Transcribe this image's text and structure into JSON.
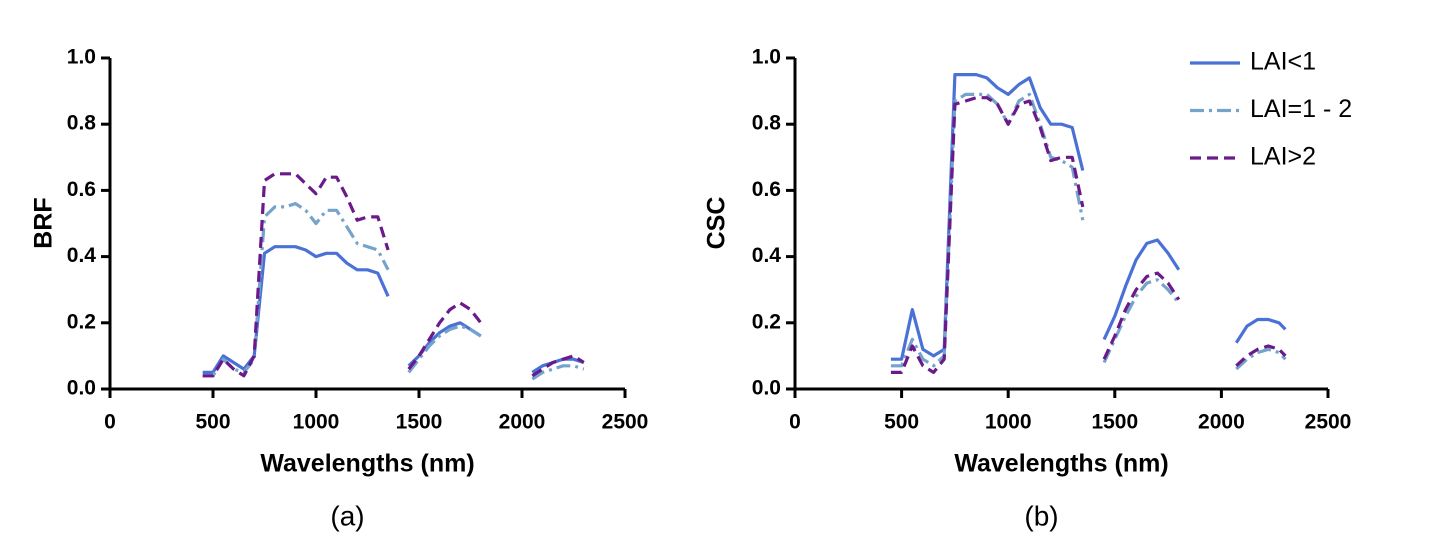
{
  "chart_data": [
    {
      "type": "line",
      "caption": "(a)",
      "xlabel": "Wavelengths (nm)",
      "ylabel": "BRF",
      "x": [
        450,
        500,
        550,
        600,
        650,
        700,
        750,
        800,
        850,
        900,
        950,
        1000,
        1050,
        1100,
        1150,
        1200,
        1250,
        1300,
        1350,
        1400,
        1450,
        1500,
        1550,
        1600,
        1650,
        1700,
        1750,
        1800,
        1900,
        2050,
        2100,
        2150,
        2200,
        2250,
        2300
      ],
      "series": [
        {
          "color": "#4a72d6",
          "dash": "solid",
          "values": [
            0.05,
            0.05,
            0.1,
            0.08,
            0.06,
            0.1,
            0.41,
            0.43,
            0.43,
            0.43,
            0.42,
            0.4,
            0.41,
            0.41,
            0.38,
            0.36,
            0.36,
            0.35,
            0.28,
            null,
            0.07,
            0.1,
            0.14,
            0.17,
            0.19,
            0.2,
            0.18,
            0.16,
            null,
            0.05,
            0.07,
            0.08,
            0.09,
            0.09,
            0.08
          ]
        },
        {
          "color": "#74a3cc",
          "dash": "dashdot",
          "values": [
            0.04,
            0.04,
            0.09,
            0.06,
            0.05,
            0.09,
            0.52,
            0.55,
            0.55,
            0.56,
            0.54,
            0.5,
            0.54,
            0.54,
            0.49,
            0.44,
            0.43,
            0.42,
            0.36,
            null,
            0.05,
            0.09,
            0.13,
            0.16,
            0.18,
            0.19,
            0.18,
            0.16,
            null,
            0.03,
            0.05,
            0.06,
            0.07,
            0.07,
            0.06
          ]
        },
        {
          "color": "#6a1a8a",
          "dash": "dash",
          "values": [
            0.04,
            0.04,
            0.09,
            0.06,
            0.04,
            0.1,
            0.63,
            0.65,
            0.65,
            0.65,
            0.62,
            0.59,
            0.64,
            0.64,
            0.58,
            0.51,
            0.52,
            0.52,
            0.42,
            null,
            0.06,
            0.1,
            0.15,
            0.2,
            0.24,
            0.26,
            0.24,
            0.2,
            null,
            0.04,
            0.06,
            0.08,
            0.09,
            0.1,
            0.08
          ]
        }
      ],
      "xlim": [
        0,
        2500
      ],
      "xticks": [
        0,
        500,
        1000,
        1500,
        2000,
        2500
      ],
      "ylim": [
        0,
        1
      ],
      "yticks": [
        {
          "value": 0,
          "label": "0.0"
        },
        0.2,
        0.4,
        0.6,
        0.8,
        {
          "value": 1,
          "label": "1.0"
        }
      ]
    },
    {
      "type": "line",
      "caption": "(b)",
      "xlabel": "Wavelengths (nm)",
      "ylabel": "CSC",
      "legend": "upper right",
      "x": [
        450,
        500,
        550,
        600,
        650,
        700,
        750,
        800,
        850,
        900,
        950,
        1000,
        1050,
        1100,
        1150,
        1200,
        1250,
        1300,
        1350,
        1400,
        1450,
        1500,
        1550,
        1600,
        1650,
        1700,
        1750,
        1800,
        1900,
        2070,
        2120,
        2170,
        2220,
        2270,
        2300
      ],
      "series": [
        {
          "name": "LAI<1",
          "color": "#4a72d6",
          "dash": "solid",
          "values": [
            0.09,
            0.09,
            0.24,
            0.12,
            0.1,
            0.12,
            0.95,
            0.95,
            0.95,
            0.94,
            0.91,
            0.89,
            0.92,
            0.94,
            0.85,
            0.8,
            0.8,
            0.79,
            0.66,
            null,
            0.15,
            0.22,
            0.31,
            0.39,
            0.44,
            0.45,
            0.41,
            0.36,
            null,
            0.14,
            0.19,
            0.21,
            0.21,
            0.2,
            0.18
          ]
        },
        {
          "name": "LAI=1 - 2",
          "color": "#74a3cc",
          "dash": "dashdot",
          "values": [
            0.07,
            0.07,
            0.15,
            0.09,
            0.07,
            0.1,
            0.87,
            0.89,
            0.89,
            0.89,
            0.86,
            0.8,
            0.87,
            0.89,
            0.8,
            0.7,
            0.69,
            0.67,
            0.51,
            null,
            0.08,
            0.15,
            0.22,
            0.28,
            0.32,
            0.33,
            0.3,
            0.26,
            null,
            0.06,
            0.09,
            0.11,
            0.12,
            0.11,
            0.09
          ]
        },
        {
          "name": "LAI>2",
          "color": "#6a1a8a",
          "dash": "dash",
          "values": [
            0.05,
            0.05,
            0.13,
            0.07,
            0.05,
            0.09,
            0.86,
            0.87,
            0.88,
            0.88,
            0.86,
            0.8,
            0.86,
            0.87,
            0.79,
            0.69,
            0.7,
            0.7,
            0.55,
            null,
            0.09,
            0.16,
            0.24,
            0.3,
            0.34,
            0.35,
            0.32,
            0.27,
            null,
            0.07,
            0.1,
            0.12,
            0.13,
            0.12,
            0.1
          ]
        }
      ],
      "xlim": [
        0,
        2500
      ],
      "xticks": [
        0,
        500,
        1000,
        1500,
        2000,
        2500
      ],
      "ylim": [
        0,
        1
      ],
      "yticks": [
        {
          "value": 0,
          "label": "0.0"
        },
        0.2,
        0.4,
        0.6,
        0.8,
        {
          "value": 1,
          "label": "1.0"
        }
      ]
    }
  ]
}
